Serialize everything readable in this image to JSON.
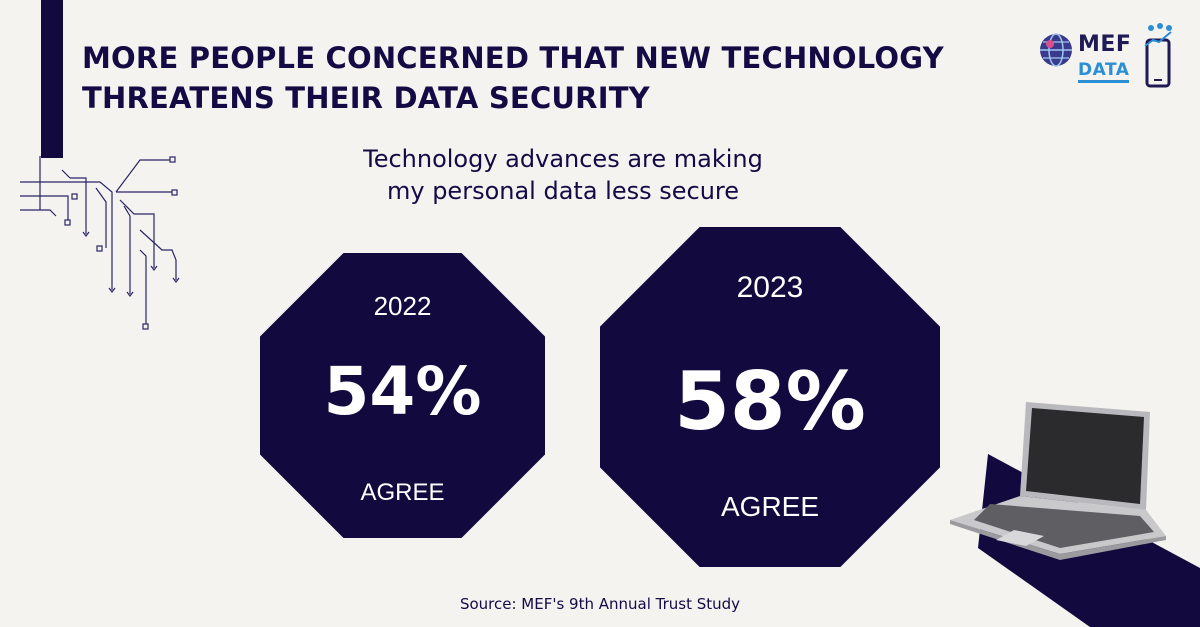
{
  "title": {
    "line1": "MORE PEOPLE CONCERNED THAT NEW TECHNOLOGY",
    "line2": "THREATENS THEIR DATA SECURITY"
  },
  "logo": {
    "top": "MEF",
    "bottom": "DATA"
  },
  "subtitle": {
    "line1": "Technology advances are making",
    "line2": "my personal data less secure"
  },
  "chart_data": {
    "type": "bar",
    "title": "Technology advances are making my personal data less secure",
    "categories": [
      "2022",
      "2023"
    ],
    "values": [
      54,
      58
    ],
    "unit": "%",
    "labels": [
      "54%",
      "58%"
    ],
    "caption": "AGREE"
  },
  "source": "Source: MEF's 9th Annual Trust Study",
  "colors": {
    "navy": "#120a3e",
    "background": "#f4f3f0",
    "logo_blue": "#2b8fd6"
  }
}
